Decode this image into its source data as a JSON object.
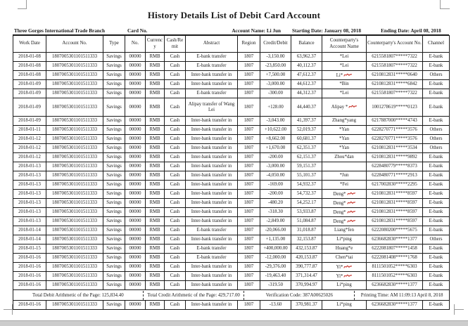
{
  "page": {
    "title": "History Details List of Debit Card Account",
    "info": {
      "branch": "Three Gorges International Trade Branch",
      "card_no_label": "Card No.",
      "account_name": "Account Name: Li Jun",
      "starting_date": "Starting Date: January 08, 2018",
      "ending_date": "Ending Date: April 08, 2018"
    },
    "columns": [
      "Work Date",
      "Account No.",
      "Type",
      "No.",
      "Currency",
      "Cash/Remit",
      "Abstract",
      "Region",
      "Credit/Debit",
      "Balance",
      "Counterparty's Account Name",
      "Counterparty's Account No.",
      "Channel"
    ],
    "red_mark_color": "#c62a21",
    "totals_row_index": 25,
    "totals": {
      "debit": "Total Debit Arithmetic of the Page: 125,834.40",
      "credit": "Total Credit Arithmetic of the Page: 429,717.00",
      "verification": "Verification Code: 387A00625026",
      "printing": "Printing Time: AM 11:09:13 April 8, 2018"
    },
    "rows": [
      {
        "date": "2018-01-08",
        "account": "1807005301101511333",
        "type": "Savings",
        "no": "00000",
        "currency": "RMB",
        "cash_remit": "Cash",
        "abstract": "E-bank transfer",
        "region": "1807",
        "amount": "-3,150.00",
        "balance": "63,962.37",
        "cp_name": "*Lei",
        "cp_mark": false,
        "cp_account": "6215581807*****7322",
        "channel": "E-bank",
        "tall": false
      },
      {
        "date": "2018-01-08",
        "account": "1807005301101511333",
        "type": "Savings",
        "no": "00000",
        "currency": "RMB",
        "cash_remit": "Cash",
        "abstract": "E-bank transfer",
        "region": "1807",
        "amount": "-23,850.00",
        "balance": "40,112.37",
        "cp_name": "*Lei",
        "cp_mark": false,
        "cp_account": "6215581807*****7322",
        "channel": "E-bank",
        "tall": false
      },
      {
        "date": "2018-01-08",
        "account": "1807005301101511333",
        "type": "Savings",
        "no": "00000",
        "currency": "RMB",
        "cash_remit": "Cash",
        "abstract": "Inter-bank transfer in",
        "region": "1807",
        "amount": "+7,500.00",
        "balance": "47,612.37",
        "cp_name": "Li*",
        "cp_mark": true,
        "cp_account": "6210812831*****0640",
        "channel": "Others",
        "tall": false
      },
      {
        "date": "2018-01-09",
        "account": "1807005301101511333",
        "type": "Savings",
        "no": "00000",
        "currency": "RMB",
        "cash_remit": "Cash",
        "abstract": "Inter-bank transfer in",
        "region": "1807",
        "amount": "-3,000.00",
        "balance": "44,612.37",
        "cp_name": "*Bin",
        "cp_mark": false,
        "cp_account": "6210812831*****6842",
        "channel": "E-bank",
        "tall": false
      },
      {
        "date": "2018-01-09",
        "account": "1807005301101511333",
        "type": "Savings",
        "no": "00000",
        "currency": "RMB",
        "cash_remit": "Cash",
        "abstract": "E-bank transfer",
        "region": "1807",
        "amount": "-300.00",
        "balance": "44,312.37",
        "cp_name": "*Lei",
        "cp_mark": false,
        "cp_account": "6215581807*****7322",
        "channel": "E-bank",
        "tall": false
      },
      {
        "date": "2018-01-09",
        "account": "1807005301101511333",
        "type": "Savings",
        "no": "00000",
        "currency": "RMB",
        "cash_remit": "Cash",
        "abstract": "Alipay transfer of Wang Lei",
        "region": "1807",
        "amount": "+128.00",
        "balance": "44,440.37",
        "cp_name": "Alipay *",
        "cp_mark": true,
        "cp_account": "1001278619*****0123",
        "channel": "E-bank",
        "tall": true
      },
      {
        "date": "2018-01-09",
        "account": "1807005301101511333",
        "type": "Savings",
        "no": "00000",
        "currency": "RMB",
        "cash_remit": "Cash",
        "abstract": "Inter-bank transfer in",
        "region": "1807",
        "amount": "-3,043.00",
        "balance": "41,397.37",
        "cp_name": "Zhang*yang",
        "cp_mark": false,
        "cp_account": "6217887000*****4743",
        "channel": "E-bank",
        "tall": false
      },
      {
        "date": "2018-01-11",
        "account": "1807005301101511333",
        "type": "Savings",
        "no": "00000",
        "currency": "RMB",
        "cash_remit": "Cash",
        "abstract": "Inter-bank transfer in",
        "region": "1807",
        "amount": "+10,622.00",
        "balance": "52,019.37",
        "cp_name": "*Yan",
        "cp_mark": false,
        "cp_account": "6228270771*****3576",
        "channel": "Others",
        "tall": false
      },
      {
        "date": "2018-01-12",
        "account": "1807005301101511333",
        "type": "Savings",
        "no": "00000",
        "currency": "RMB",
        "cash_remit": "Cash",
        "abstract": "Inter-bank transfer in",
        "region": "1807",
        "amount": "+8,662.00",
        "balance": "60,681.37",
        "cp_name": "*Yan",
        "cp_mark": false,
        "cp_account": "6228270771*****3576",
        "channel": "Others",
        "tall": false
      },
      {
        "date": "2018-01-12",
        "account": "1807005301101511333",
        "type": "Savings",
        "no": "00000",
        "currency": "RMB",
        "cash_remit": "Cash",
        "abstract": "Inter-bank transfer in",
        "region": "1807",
        "amount": "+1,670.00",
        "balance": "62,351.37",
        "cp_name": "*Yan",
        "cp_mark": false,
        "cp_account": "6210812831*****3534",
        "channel": "Others",
        "tall": false
      },
      {
        "date": "2018-01-12",
        "account": "1807005301101511333",
        "type": "Savings",
        "no": "00000",
        "currency": "RMB",
        "cash_remit": "Cash",
        "abstract": "Inter-bank transfer in",
        "region": "1807",
        "amount": "-200.00",
        "balance": "62,151.37",
        "cp_name": "Zhou*dan",
        "cp_mark": false,
        "cp_account": "6210812831*****9892",
        "channel": "E-bank",
        "tall": false
      },
      {
        "date": "2018-01-13",
        "account": "1807005301101511333",
        "type": "Savings",
        "no": "00000",
        "currency": "RMB",
        "cash_remit": "Cash",
        "abstract": "Inter-bank transfer in",
        "region": "1807",
        "amount": "-3,000.00",
        "balance": "59,151.37",
        "cp_name": "",
        "cp_mark": false,
        "cp_account": "6228480779*****8373",
        "channel": "E-bank",
        "tall": false
      },
      {
        "date": "2018-01-13",
        "account": "1807005301101511333",
        "type": "Savings",
        "no": "00000",
        "currency": "RMB",
        "cash_remit": "Cash",
        "abstract": "Inter-bank transfer in",
        "region": "1807",
        "amount": "-4,050.00",
        "balance": "55,101.37",
        "cp_name": "*Jun",
        "cp_mark": false,
        "cp_account": "6228480771*****2913",
        "channel": "E-bank",
        "tall": false
      },
      {
        "date": "2018-01-13",
        "account": "1807005301101511333",
        "type": "Savings",
        "no": "00000",
        "currency": "RMB",
        "cash_remit": "Cash",
        "abstract": "Inter-bank transfer in",
        "region": "1807",
        "amount": "-169.00",
        "balance": "54,932.37",
        "cp_name": "*Fei",
        "cp_mark": false,
        "cp_account": "6217002830*****2295",
        "channel": "E-bank",
        "tall": false
      },
      {
        "date": "2018-01-13",
        "account": "1807005301101511333",
        "type": "Savings",
        "no": "00000",
        "currency": "RMB",
        "cash_remit": "Cash",
        "abstract": "Inter-bank transfer in",
        "region": "1807",
        "amount": "-200.00",
        "balance": "54,732.37",
        "cp_name": "Deng*",
        "cp_mark": true,
        "cp_account": "6210812831*****8597",
        "channel": "E-bank",
        "tall": false
      },
      {
        "date": "2018-01-13",
        "account": "1807005301101511333",
        "type": "Savings",
        "no": "00000",
        "currency": "RMB",
        "cash_remit": "Cash",
        "abstract": "Inter-bank transfer in",
        "region": "1807",
        "amount": "-480.20",
        "balance": "54,252.17",
        "cp_name": "Deng*",
        "cp_mark": true,
        "cp_account": "6210812831*****8597",
        "channel": "E-bank",
        "tall": false
      },
      {
        "date": "2018-01-13",
        "account": "1807005301101511333",
        "type": "Savings",
        "no": "00000",
        "currency": "RMB",
        "cash_remit": "Cash",
        "abstract": "Inter-bank transfer in",
        "region": "1807",
        "amount": "-318.30",
        "balance": "53,933.87",
        "cp_name": "Deng*",
        "cp_mark": true,
        "cp_account": "6210812831*****8597",
        "channel": "E-bank",
        "tall": false
      },
      {
        "date": "2018-01-13",
        "account": "1807005301101511333",
        "type": "Savings",
        "no": "00000",
        "currency": "RMB",
        "cash_remit": "Cash",
        "abstract": "Inter-bank transfer in",
        "region": "1807",
        "amount": "-2,849.00",
        "balance": "51,084.87",
        "cp_name": "Deng*",
        "cp_mark": true,
        "cp_account": "6210812831*****8597",
        "channel": "E-bank",
        "tall": false
      },
      {
        "date": "2018-01-14",
        "account": "1807005301101511333",
        "type": "Savings",
        "no": "00000",
        "currency": "RMB",
        "cash_remit": "Cash",
        "abstract": "E-bank transfer",
        "region": "1807",
        "amount": "-20,066.00",
        "balance": "31,018.87",
        "cp_name": "Liang*fen",
        "cp_mark": false,
        "cp_account": "6222080200*****5675",
        "channel": "E-bank",
        "tall": false
      },
      {
        "date": "2018-01-14",
        "account": "1807005301101511333",
        "type": "Savings",
        "no": "00000",
        "currency": "RMB",
        "cash_remit": "Cash",
        "abstract": "Inter-bank transfer in",
        "region": "1807",
        "amount": "+1,135.00",
        "balance": "32,153.87",
        "cp_name": "Li*ping",
        "cp_mark": false,
        "cp_account": "6236682830*****1377",
        "channel": "Others",
        "tall": false
      },
      {
        "date": "2018-01-15",
        "account": "1807005301101511333",
        "type": "Savings",
        "no": "00000",
        "currency": "RMB",
        "cash_remit": "Cash",
        "abstract": "E-bank transfer",
        "region": "1807",
        "amount": "+400,000.00",
        "balance": "432,153.87",
        "cp_name": "Huang*e",
        "cp_mark": false,
        "cp_account": "6222081807*****1458",
        "channel": "E-bank",
        "tall": false
      },
      {
        "date": "2018-01-16",
        "account": "1807005301101511333",
        "type": "Savings",
        "no": "00000",
        "currency": "RMB",
        "cash_remit": "Cash",
        "abstract": "E-bank transfer",
        "region": "1807",
        "amount": "-12,000.00",
        "balance": "420,153.87",
        "cp_name": "Chen*tai",
        "cp_mark": false,
        "cp_account": "6222081408*****1768",
        "channel": "E-bank",
        "tall": false
      },
      {
        "date": "2018-01-16",
        "account": "1807005301101511333",
        "type": "Savings",
        "no": "00000",
        "currency": "RMB",
        "cash_remit": "Cash",
        "abstract": "Inter-bank transfer in",
        "region": "1807",
        "amount": "-29,376.00",
        "balance": "390,777.87",
        "cp_name": "Yi*",
        "cp_mark": true,
        "cp_account": "8111501052*****6303",
        "channel": "E-bank",
        "tall": false
      },
      {
        "date": "2018-01-16",
        "account": "1807005301101511333",
        "type": "Savings",
        "no": "00000",
        "currency": "RMB",
        "cash_remit": "Cash",
        "abstract": "Inter-bank transfer in",
        "region": "1807",
        "amount": "-19,463.40",
        "balance": "371,314.47",
        "cp_name": "Yi*",
        "cp_mark": true,
        "cp_account": "8111501052*****6303",
        "channel": "E-bank",
        "tall": false
      },
      {
        "date": "2018-01-16",
        "account": "1807005301101511333",
        "type": "Savings",
        "no": "00000",
        "currency": "RMB",
        "cash_remit": "Cash",
        "abstract": "Inter-bank transfer in",
        "region": "1807",
        "amount": "-319.50",
        "balance": "370,994.97",
        "cp_name": "Li*ping",
        "cp_mark": false,
        "cp_account": "6236682830*****1377",
        "channel": "E-bank",
        "tall": false
      },
      {
        "date": "2018-01-16",
        "account": "1807005301101511333",
        "type": "Savings",
        "no": "00000",
        "currency": "RMB",
        "cash_remit": "Cash",
        "abstract": "Inter-bank transfer in",
        "region": "1807",
        "amount": "-13.60",
        "balance": "370,981.37",
        "cp_name": "Li*ping",
        "cp_mark": false,
        "cp_account": "6236682830*****1377",
        "channel": "E-bank",
        "tall": false
      }
    ]
  }
}
